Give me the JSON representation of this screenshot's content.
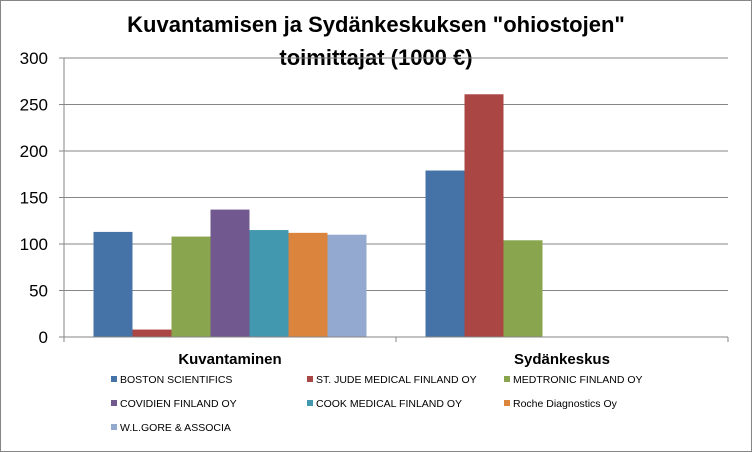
{
  "chart_data": {
    "type": "bar",
    "title_lines": [
      "Kuvantamisen ja Sydänkeskuksen \"ohiostojen\"",
      "toimittajat (1000 €)"
    ],
    "categories": [
      "Kuvantaminen",
      "Sydänkeskus"
    ],
    "ylim": [
      0,
      300
    ],
    "yticks": [
      0,
      50,
      100,
      150,
      200,
      250,
      300
    ],
    "grid": true,
    "legend_position": "bottom",
    "series": [
      {
        "name": "BOSTON SCIENTIFICS",
        "color": "#4572A7",
        "values": [
          113,
          179
        ]
      },
      {
        "name": "ST. JUDE MEDICAL FINLAND OY",
        "color": "#AA4643",
        "values": [
          8,
          261
        ]
      },
      {
        "name": "MEDTRONIC FINLAND OY",
        "color": "#89A54E",
        "values": [
          108,
          104
        ]
      },
      {
        "name": "COVIDIEN FINLAND OY",
        "color": "#71588F",
        "values": [
          137,
          0
        ]
      },
      {
        "name": "COOK MEDICAL FINLAND OY",
        "color": "#4198AF",
        "values": [
          115,
          0
        ]
      },
      {
        "name": "Roche Diagnostics Oy",
        "color": "#DB843D",
        "values": [
          112,
          0
        ]
      },
      {
        "name": "W.L.GORE & ASSOCIA",
        "color": "#93A9CF",
        "values": [
          110,
          0
        ]
      }
    ]
  }
}
